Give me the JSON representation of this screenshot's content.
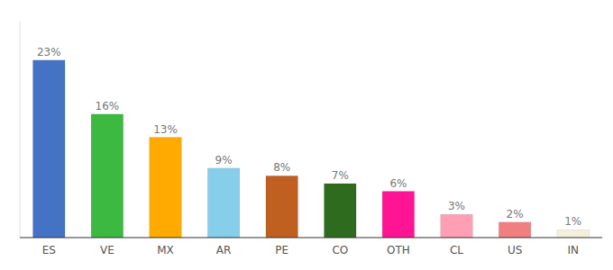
{
  "chart_data": {
    "type": "bar",
    "categories": [
      "ES",
      "VE",
      "MX",
      "AR",
      "PE",
      "CO",
      "OTH",
      "CL",
      "US",
      "IN"
    ],
    "values": [
      23,
      16,
      13,
      9,
      8,
      7,
      6,
      3,
      2,
      1
    ],
    "value_labels": [
      "23%",
      "16%",
      "13%",
      "9%",
      "8%",
      "7%",
      "6%",
      "3%",
      "2%",
      "1%"
    ],
    "colors": [
      "#4472C4",
      "#3CB941",
      "#FFAA00",
      "#87CEEB",
      "#BF6020",
      "#2E6B1E",
      "#FF1493",
      "#FF9EB5",
      "#F08080",
      "#F5F0DC"
    ],
    "ylim": [
      0,
      28
    ],
    "data_labels": true,
    "tick_labels": "x",
    "grid": false
  }
}
